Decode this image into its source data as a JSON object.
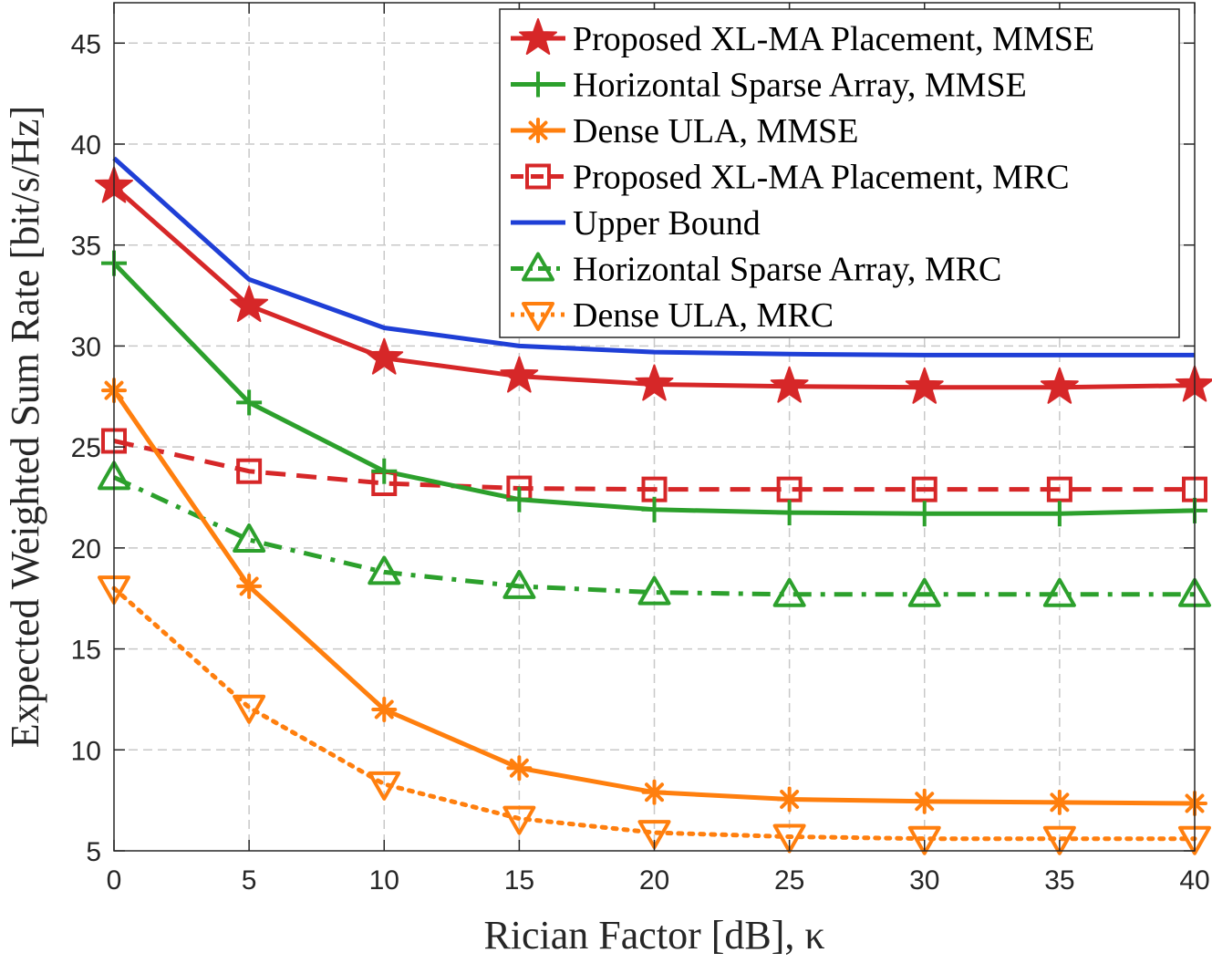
{
  "chart_data": {
    "type": "line",
    "title": "",
    "xlabel": "Rician Factor [dB], κ",
    "ylabel": "Expected Weighted Sum Rate [bit/s/Hz]",
    "xlim": [
      0,
      40
    ],
    "ylim": [
      5,
      47
    ],
    "xticks": [
      0,
      5,
      10,
      15,
      20,
      25,
      30,
      35,
      40
    ],
    "yticks": [
      5,
      10,
      15,
      20,
      25,
      30,
      35,
      40,
      45
    ],
    "grid": true,
    "legend_position": "top-right",
    "x": [
      0,
      5,
      10,
      15,
      20,
      25,
      30,
      35,
      40
    ],
    "series": [
      {
        "name": "Proposed XL-MA Placement, MMSE",
        "color": "#d62728",
        "line": "solid",
        "marker": "star",
        "values": [
          37.9,
          32.0,
          29.4,
          28.5,
          28.1,
          28.0,
          27.95,
          27.95,
          28.05
        ]
      },
      {
        "name": "Horizontal Sparse Array, MMSE",
        "color": "#2ca02c",
        "line": "solid",
        "marker": "plus",
        "values": [
          34.1,
          27.2,
          23.8,
          22.4,
          21.9,
          21.75,
          21.7,
          21.7,
          21.85
        ]
      },
      {
        "name": "Dense ULA, MMSE",
        "color": "#ff7f0e",
        "line": "solid",
        "marker": "asterisk",
        "values": [
          27.8,
          18.1,
          12.0,
          9.1,
          7.9,
          7.55,
          7.45,
          7.4,
          7.35
        ]
      },
      {
        "name": "Proposed XL-MA Placement, MRC",
        "color": "#d62728",
        "line": "dashed",
        "marker": "square",
        "values": [
          25.3,
          23.8,
          23.2,
          22.95,
          22.9,
          22.9,
          22.9,
          22.9,
          22.9
        ]
      },
      {
        "name": "Upper Bound",
        "color": "#1f3fd6",
        "line": "solid",
        "marker": "none",
        "values": [
          39.3,
          33.3,
          30.9,
          30.0,
          29.7,
          29.6,
          29.55,
          29.55,
          29.55
        ]
      },
      {
        "name": "Horizontal Sparse Array, MRC",
        "color": "#2ca02c",
        "line": "dashdot",
        "marker": "triangle-up",
        "values": [
          23.5,
          20.4,
          18.8,
          18.1,
          17.8,
          17.7,
          17.7,
          17.7,
          17.7
        ]
      },
      {
        "name": "Dense ULA, MRC",
        "color": "#ff7f0e",
        "line": "dotted",
        "marker": "triangle-down",
        "values": [
          18.0,
          12.1,
          8.3,
          6.6,
          5.9,
          5.7,
          5.6,
          5.6,
          5.6
        ]
      }
    ]
  }
}
